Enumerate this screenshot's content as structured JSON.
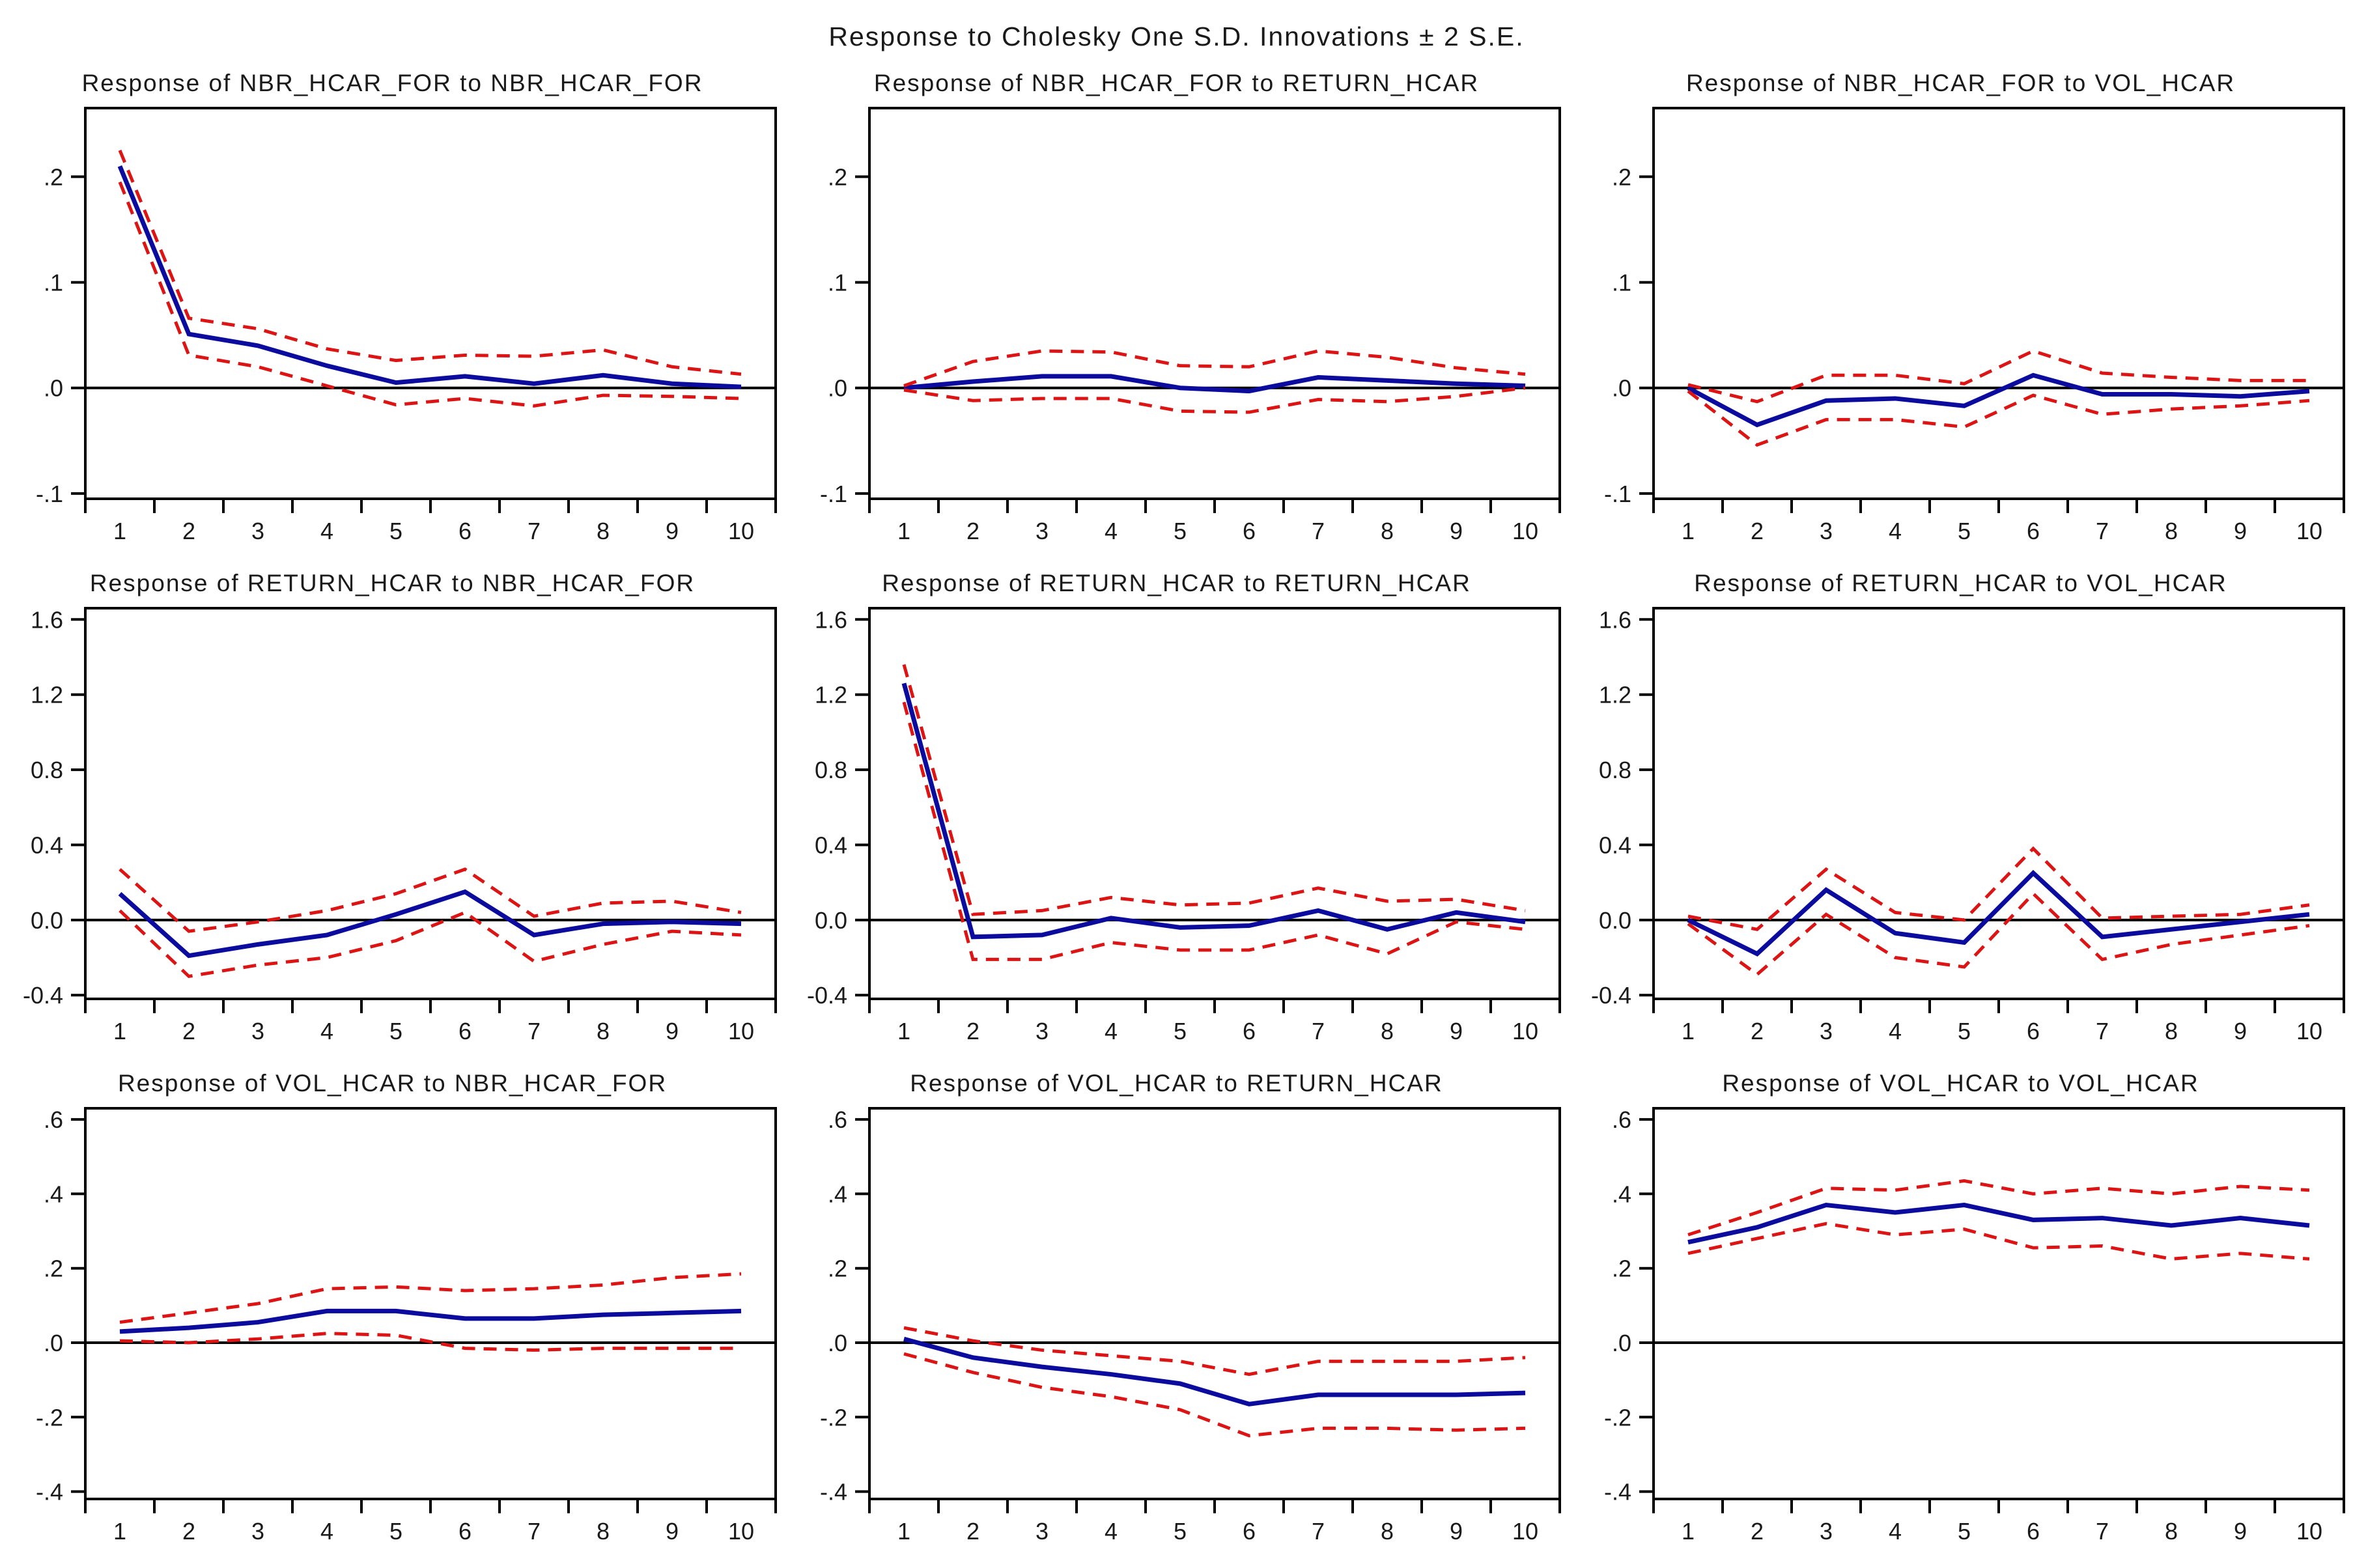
{
  "page_title": "Response to Cholesky One S.D. Innovations ± 2 S.E.",
  "colors": {
    "response": "#0b0b9e",
    "upper_2se": "#dd1414",
    "lower_2se": "#dd1414",
    "axis": "#000000",
    "text": "#1a1a1a",
    "background": "#ffffff"
  },
  "x_labels": [
    "1",
    "2",
    "3",
    "4",
    "5",
    "6",
    "7",
    "8",
    "9",
    "10"
  ],
  "chart_data": [
    {
      "type": "line",
      "title": "Response of NBR_HCAR_FOR to NBR_HCAR_FOR",
      "x": [
        1,
        2,
        3,
        4,
        5,
        6,
        7,
        8,
        9,
        10
      ],
      "ylim": [
        -0.105,
        0.265
      ],
      "yticks": [
        {
          "label": ".2",
          "value": 0.2
        },
        {
          "label": ".1",
          "value": 0.1
        },
        {
          "label": ".0",
          "value": 0.0
        },
        {
          "label": "-.1",
          "value": -0.1
        }
      ],
      "series": [
        {
          "name": "response",
          "values": [
            0.21,
            0.051,
            0.04,
            0.021,
            0.005,
            0.011,
            0.004,
            0.012,
            0.004,
            0.001
          ]
        },
        {
          "name": "upper_2se",
          "values": [
            0.225,
            0.066,
            0.056,
            0.037,
            0.026,
            0.031,
            0.03,
            0.036,
            0.02,
            0.013
          ]
        },
        {
          "name": "lower_2se",
          "values": [
            0.195,
            0.031,
            0.02,
            0.002,
            -0.016,
            -0.01,
            -0.017,
            -0.007,
            -0.008,
            -0.01
          ]
        }
      ]
    },
    {
      "type": "line",
      "title": "Response of NBR_HCAR_FOR to RETURN_HCAR",
      "x": [
        1,
        2,
        3,
        4,
        5,
        6,
        7,
        8,
        9,
        10
      ],
      "ylim": [
        -0.105,
        0.265
      ],
      "yticks": [
        {
          "label": ".2",
          "value": 0.2
        },
        {
          "label": ".1",
          "value": 0.1
        },
        {
          "label": ".0",
          "value": 0.0
        },
        {
          "label": "-.1",
          "value": -0.1
        }
      ],
      "series": [
        {
          "name": "response",
          "values": [
            0.0,
            0.006,
            0.011,
            0.011,
            0.0,
            -0.003,
            0.01,
            0.007,
            0.004,
            0.002
          ]
        },
        {
          "name": "upper_2se",
          "values": [
            0.002,
            0.025,
            0.035,
            0.034,
            0.021,
            0.02,
            0.035,
            0.029,
            0.019,
            0.013
          ]
        },
        {
          "name": "lower_2se",
          "values": [
            -0.002,
            -0.012,
            -0.01,
            -0.01,
            -0.022,
            -0.023,
            -0.011,
            -0.013,
            -0.008,
            0.0
          ]
        }
      ]
    },
    {
      "type": "line",
      "title": "Response of NBR_HCAR_FOR to VOL_HCAR",
      "x": [
        1,
        2,
        3,
        4,
        5,
        6,
        7,
        8,
        9,
        10
      ],
      "ylim": [
        -0.105,
        0.265
      ],
      "yticks": [
        {
          "label": ".2",
          "value": 0.2
        },
        {
          "label": ".1",
          "value": 0.1
        },
        {
          "label": ".0",
          "value": 0.0
        },
        {
          "label": "-.1",
          "value": -0.1
        }
      ],
      "series": [
        {
          "name": "response",
          "values": [
            0.0,
            -0.035,
            -0.012,
            -0.01,
            -0.017,
            0.012,
            -0.006,
            -0.006,
            -0.008,
            -0.003
          ]
        },
        {
          "name": "upper_2se",
          "values": [
            0.003,
            -0.013,
            0.012,
            0.012,
            0.004,
            0.035,
            0.014,
            0.01,
            0.007,
            0.007
          ]
        },
        {
          "name": "lower_2se",
          "values": [
            -0.003,
            -0.054,
            -0.03,
            -0.03,
            -0.037,
            -0.007,
            -0.025,
            -0.02,
            -0.017,
            -0.012
          ]
        }
      ]
    },
    {
      "type": "line",
      "title": "Response of RETURN_HCAR to NBR_HCAR_FOR",
      "x": [
        1,
        2,
        3,
        4,
        5,
        6,
        7,
        8,
        9,
        10
      ],
      "ylim": [
        -0.42,
        1.66
      ],
      "yticks": [
        {
          "label": "1.6",
          "value": 1.6
        },
        {
          "label": "1.2",
          "value": 1.2
        },
        {
          "label": "0.8",
          "value": 0.8
        },
        {
          "label": "0.4",
          "value": 0.4
        },
        {
          "label": "0.0",
          "value": 0.0
        },
        {
          "label": "-0.4",
          "value": -0.4
        }
      ],
      "series": [
        {
          "name": "response",
          "values": [
            0.14,
            -0.19,
            -0.13,
            -0.08,
            0.03,
            0.15,
            -0.08,
            -0.02,
            -0.01,
            -0.02
          ]
        },
        {
          "name": "upper_2se",
          "values": [
            0.27,
            -0.06,
            -0.01,
            0.05,
            0.14,
            0.27,
            0.02,
            0.09,
            0.1,
            0.04
          ]
        },
        {
          "name": "lower_2se",
          "values": [
            0.05,
            -0.3,
            -0.24,
            -0.2,
            -0.11,
            0.04,
            -0.22,
            -0.13,
            -0.06,
            -0.08
          ]
        }
      ]
    },
    {
      "type": "line",
      "title": "Response of RETURN_HCAR to RETURN_HCAR",
      "x": [
        1,
        2,
        3,
        4,
        5,
        6,
        7,
        8,
        9,
        10
      ],
      "ylim": [
        -0.42,
        1.66
      ],
      "yticks": [
        {
          "label": "1.6",
          "value": 1.6
        },
        {
          "label": "1.2",
          "value": 1.2
        },
        {
          "label": "0.8",
          "value": 0.8
        },
        {
          "label": "0.4",
          "value": 0.4
        },
        {
          "label": "0.0",
          "value": 0.0
        },
        {
          "label": "-0.4",
          "value": -0.4
        }
      ],
      "series": [
        {
          "name": "response",
          "values": [
            1.26,
            -0.09,
            -0.08,
            0.01,
            -0.04,
            -0.03,
            0.05,
            -0.05,
            0.04,
            -0.01
          ]
        },
        {
          "name": "upper_2se",
          "values": [
            1.36,
            0.03,
            0.05,
            0.12,
            0.08,
            0.09,
            0.17,
            0.1,
            0.11,
            0.05
          ]
        },
        {
          "name": "lower_2se",
          "values": [
            1.16,
            -0.21,
            -0.21,
            -0.12,
            -0.16,
            -0.16,
            -0.08,
            -0.18,
            -0.01,
            -0.05
          ]
        }
      ]
    },
    {
      "type": "line",
      "title": "Response of RETURN_HCAR to VOL_HCAR",
      "x": [
        1,
        2,
        3,
        4,
        5,
        6,
        7,
        8,
        9,
        10
      ],
      "ylim": [
        -0.42,
        1.66
      ],
      "yticks": [
        {
          "label": "1.6",
          "value": 1.6
        },
        {
          "label": "1.2",
          "value": 1.2
        },
        {
          "label": "0.8",
          "value": 0.8
        },
        {
          "label": "0.4",
          "value": 0.4
        },
        {
          "label": "0.0",
          "value": 0.0
        },
        {
          "label": "-0.4",
          "value": -0.4
        }
      ],
      "series": [
        {
          "name": "response",
          "values": [
            0.0,
            -0.18,
            0.16,
            -0.07,
            -0.12,
            0.25,
            -0.09,
            -0.05,
            -0.01,
            0.03
          ]
        },
        {
          "name": "upper_2se",
          "values": [
            0.02,
            -0.05,
            0.27,
            0.04,
            0.0,
            0.38,
            0.01,
            0.02,
            0.03,
            0.08
          ]
        },
        {
          "name": "lower_2se",
          "values": [
            -0.02,
            -0.29,
            0.03,
            -0.2,
            -0.25,
            0.14,
            -0.21,
            -0.13,
            -0.08,
            -0.03
          ]
        }
      ]
    },
    {
      "type": "line",
      "title": "Response of VOL_HCAR to NBR_HCAR_FOR",
      "x": [
        1,
        2,
        3,
        4,
        5,
        6,
        7,
        8,
        9,
        10
      ],
      "ylim": [
        -0.42,
        0.63
      ],
      "yticks": [
        {
          "label": ".6",
          "value": 0.6
        },
        {
          "label": ".4",
          "value": 0.4
        },
        {
          "label": ".2",
          "value": 0.2
        },
        {
          "label": ".0",
          "value": 0.0
        },
        {
          "label": "-.2",
          "value": -0.2
        },
        {
          "label": "-.4",
          "value": -0.4
        }
      ],
      "series": [
        {
          "name": "response",
          "values": [
            0.03,
            0.04,
            0.055,
            0.085,
            0.085,
            0.065,
            0.065,
            0.075,
            0.08,
            0.085
          ]
        },
        {
          "name": "upper_2se",
          "values": [
            0.055,
            0.08,
            0.105,
            0.145,
            0.15,
            0.14,
            0.145,
            0.155,
            0.175,
            0.185
          ]
        },
        {
          "name": "lower_2se",
          "values": [
            0.005,
            0.0,
            0.01,
            0.025,
            0.02,
            -0.015,
            -0.02,
            -0.015,
            -0.015,
            -0.015
          ]
        }
      ]
    },
    {
      "type": "line",
      "title": "Response of VOL_HCAR to RETURN_HCAR",
      "x": [
        1,
        2,
        3,
        4,
        5,
        6,
        7,
        8,
        9,
        10
      ],
      "ylim": [
        -0.42,
        0.63
      ],
      "yticks": [
        {
          "label": ".6",
          "value": 0.6
        },
        {
          "label": ".4",
          "value": 0.4
        },
        {
          "label": ".2",
          "value": 0.2
        },
        {
          "label": ".0",
          "value": 0.0
        },
        {
          "label": "-.2",
          "value": -0.2
        },
        {
          "label": "-.4",
          "value": -0.4
        }
      ],
      "series": [
        {
          "name": "response",
          "values": [
            0.01,
            -0.04,
            -0.065,
            -0.085,
            -0.11,
            -0.165,
            -0.14,
            -0.14,
            -0.14,
            -0.135
          ]
        },
        {
          "name": "upper_2se",
          "values": [
            0.04,
            0.005,
            -0.02,
            -0.035,
            -0.05,
            -0.085,
            -0.05,
            -0.05,
            -0.05,
            -0.04
          ]
        },
        {
          "name": "lower_2se",
          "values": [
            -0.03,
            -0.08,
            -0.12,
            -0.145,
            -0.18,
            -0.25,
            -0.23,
            -0.23,
            -0.235,
            -0.23
          ]
        }
      ]
    },
    {
      "type": "line",
      "title": "Response of VOL_HCAR to VOL_HCAR",
      "x": [
        1,
        2,
        3,
        4,
        5,
        6,
        7,
        8,
        9,
        10
      ],
      "ylim": [
        -0.42,
        0.63
      ],
      "yticks": [
        {
          "label": ".6",
          "value": 0.6
        },
        {
          "label": ".4",
          "value": 0.4
        },
        {
          "label": ".2",
          "value": 0.2
        },
        {
          "label": ".0",
          "value": 0.0
        },
        {
          "label": "-.2",
          "value": -0.2
        },
        {
          "label": "-.4",
          "value": -0.4
        }
      ],
      "series": [
        {
          "name": "response",
          "values": [
            0.27,
            0.31,
            0.37,
            0.35,
            0.37,
            0.33,
            0.335,
            0.315,
            0.335,
            0.315
          ]
        },
        {
          "name": "upper_2se",
          "values": [
            0.29,
            0.35,
            0.415,
            0.41,
            0.435,
            0.4,
            0.415,
            0.4,
            0.42,
            0.41
          ]
        },
        {
          "name": "lower_2se",
          "values": [
            0.24,
            0.28,
            0.32,
            0.29,
            0.305,
            0.255,
            0.26,
            0.225,
            0.24,
            0.225
          ]
        }
      ]
    }
  ]
}
